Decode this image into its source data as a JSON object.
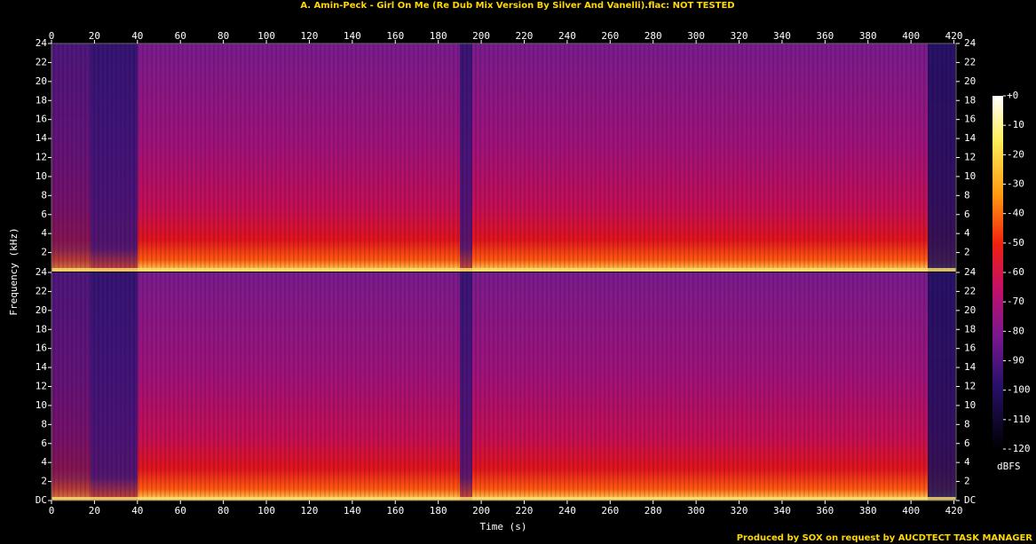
{
  "chart_data": {
    "type": "spectrogram",
    "title": "A. Amin-Peck - Girl On Me (Re Dub Mix Version By Silver And Vanelli).flac: NOT TESTED",
    "x_label": "Time (s)",
    "y_label": "Frequency (kHz)",
    "xlim": [
      0,
      421
    ],
    "xticks": [
      0,
      20,
      40,
      60,
      80,
      100,
      120,
      140,
      160,
      180,
      200,
      220,
      240,
      260,
      280,
      300,
      320,
      340,
      360,
      380,
      400,
      420
    ],
    "ylim": [
      0,
      24
    ],
    "yticks": [
      {
        "value": 0,
        "label": "DC"
      },
      2,
      4,
      6,
      8,
      10,
      12,
      14,
      16,
      18,
      20,
      22,
      24
    ],
    "colorbar": {
      "label": "dBFS",
      "lim": [
        -120,
        0
      ],
      "ticks": [
        {
          "value": 0,
          "label": "+0"
        },
        -10,
        -20,
        -30,
        -40,
        -50,
        -60,
        -70,
        -80,
        -90,
        -100,
        -110,
        -120
      ]
    },
    "footer": "Produced by SOX on request by AUCDTECT TASK MANAGER"
  }
}
